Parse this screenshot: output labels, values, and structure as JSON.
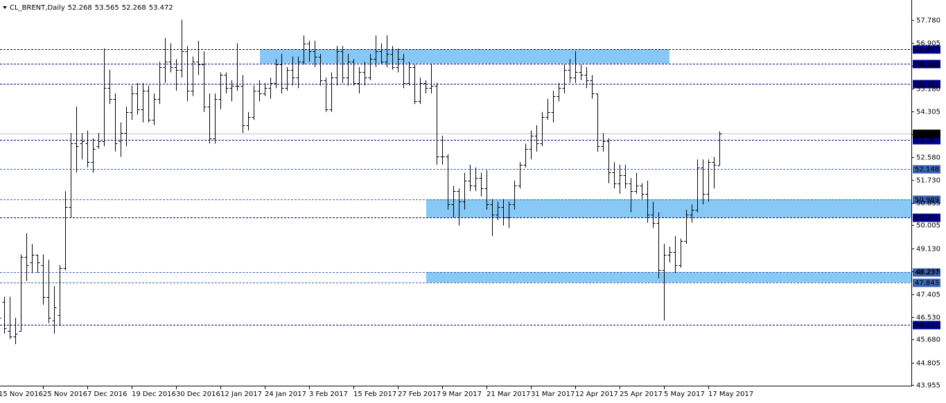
{
  "chart_data": {
    "type": "ohlc",
    "title": "CL_BRENT,Daily",
    "categories": [
      "15 Nov 2016",
      null,
      null,
      null,
      null,
      null,
      null,
      null,
      "25 Nov 2016",
      null,
      null,
      null,
      null,
      null,
      null,
      null,
      "7 Dec 2016",
      null,
      null,
      null,
      null,
      null,
      null,
      null,
      "19 Dec 2016",
      null,
      null,
      null,
      null,
      null,
      null,
      null,
      "30 Dec 2016",
      null,
      null,
      null,
      null,
      null,
      null,
      null,
      "12 Jan 2017",
      null,
      null,
      null,
      null,
      null,
      null,
      null,
      "24 Jan 2017",
      null,
      null,
      null,
      null,
      null,
      null,
      null,
      "3 Feb 2017",
      null,
      null,
      null,
      null,
      null,
      null,
      null,
      "15 Feb 2017",
      null,
      null,
      null,
      null,
      null,
      null,
      null,
      "27 Feb 2017",
      null,
      null,
      null,
      null,
      null,
      null,
      null,
      "9 Mar 2017",
      null,
      null,
      null,
      null,
      null,
      null,
      null,
      "21 Mar 2017",
      null,
      null,
      null,
      null,
      null,
      null,
      null,
      "31 Mar 2017",
      null,
      null,
      null,
      null,
      null,
      null,
      null,
      "12 Apr 2017",
      null,
      null,
      null,
      null,
      null,
      null,
      null,
      "25 Apr 2017",
      null,
      null,
      null,
      null,
      null,
      null,
      null,
      "5 May 2017",
      null,
      null,
      null,
      null,
      null,
      null,
      null,
      "17 May 2017",
      null,
      null
    ],
    "open": [
      46.8,
      47.1,
      46.0,
      45.8,
      46.0,
      48.8,
      48.6,
      48.9,
      48.5,
      47.3,
      46.4,
      46.6,
      48.4,
      50.7,
      53.1,
      53.1,
      53.1,
      52.4,
      53.0,
      53.2,
      55.2,
      54.8,
      53.2,
      53.5,
      54.3,
      55.0,
      54.4,
      55.1,
      54.0,
      54.8,
      56.0,
      56.2,
      56.0,
      55.9,
      56.6,
      55.1,
      56.2,
      56.1,
      54.5,
      53.3,
      54.8,
      55.7,
      55.2,
      55.3,
      55.3,
      53.8,
      54.1,
      55.1,
      55.0,
      55.2,
      55.4,
      56.1,
      55.2,
      55.9,
      55.6,
      56.2,
      56.9,
      56.6,
      56.4,
      55.5,
      54.4,
      55.6,
      56.6,
      55.6,
      56.2,
      55.4,
      55.8,
      55.6,
      56.3,
      56.6,
      56.2,
      56.5,
      56.0,
      56.3,
      55.4,
      56.0,
      54.7,
      55.4,
      55.2,
      55.3,
      52.6,
      52.6,
      50.8,
      51.3,
      50.9,
      51.7,
      51.5,
      51.8,
      51.4,
      50.8,
      50.4,
      50.7,
      50.3,
      50.8,
      51.5,
      52.3,
      52.9,
      53.4,
      53.1,
      54.1,
      54.3,
      54.9,
      55.2,
      55.9,
      55.6,
      55.8,
      55.7,
      55.5,
      55.0,
      53.0,
      53.2,
      52.0,
      51.6,
      51.9,
      51.6,
      51.3,
      51.5,
      51.2,
      50.4,
      50.1,
      48.3,
      48.9,
      49.0,
      48.5,
      49.4,
      50.4,
      50.6,
      52.2,
      51.2,
      52.4,
      52.268
    ],
    "high": [
      47.3,
      47.3,
      47.3,
      46.5,
      48.9,
      49.7,
      49.3,
      48.9,
      48.9,
      48.7,
      47.7,
      48.5,
      51.3,
      53.5,
      54.5,
      53.5,
      53.6,
      53.3,
      53.5,
      56.7,
      55.9,
      55.0,
      53.9,
      54.5,
      55.3,
      55.4,
      55.4,
      55.3,
      55.0,
      56.2,
      57.1,
      56.9,
      56.3,
      57.8,
      56.8,
      56.4,
      57.0,
      56.6,
      55.0,
      55.0,
      55.8,
      55.8,
      55.5,
      56.9,
      55.7,
      54.3,
      55.3,
      55.5,
      55.4,
      55.6,
      56.3,
      56.5,
      56.0,
      56.4,
      56.4,
      57.2,
      57.0,
      57.0,
      56.5,
      55.6,
      55.8,
      56.8,
      56.8,
      56.5,
      56.3,
      56.0,
      56.2,
      56.5,
      57.2,
      56.9,
      57.2,
      56.8,
      56.7,
      56.5,
      56.2,
      56.1,
      55.6,
      55.5,
      56.1,
      55.4,
      53.4,
      52.7,
      51.5,
      51.4,
      52.0,
      52.3,
      52.2,
      52.0,
      52.1,
      51.0,
      50.9,
      51.0,
      50.9,
      51.7,
      52.4,
      53.1,
      53.6,
      53.8,
      54.3,
      54.8,
      55.1,
      55.4,
      56.1,
      56.3,
      56.6,
      56.1,
      56.0,
      55.7,
      55.0,
      53.5,
      53.3,
      52.4,
      52.3,
      52.3,
      51.8,
      52.0,
      51.6,
      51.7,
      50.9,
      50.5,
      49.3,
      49.2,
      49.6,
      49.5,
      50.6,
      50.8,
      52.5,
      52.5,
      52.5,
      52.6,
      53.565
    ],
    "low": [
      46.2,
      45.9,
      45.7,
      45.5,
      46.0,
      47.9,
      48.2,
      48.2,
      47.0,
      46.3,
      45.9,
      46.2,
      48.3,
      50.3,
      52.0,
      52.5,
      52.2,
      52.0,
      52.9,
      53.0,
      54.6,
      52.8,
      52.6,
      53.0,
      54.0,
      54.2,
      53.9,
      53.9,
      53.8,
      54.6,
      55.4,
      55.8,
      55.1,
      55.6,
      54.7,
      54.9,
      55.7,
      54.3,
      53.1,
      53.1,
      54.4,
      55.0,
      54.7,
      55.1,
      53.5,
      53.6,
      54.0,
      54.7,
      54.9,
      54.8,
      55.2,
      55.0,
      55.1,
      55.3,
      55.2,
      56.1,
      56.2,
      56.0,
      55.3,
      54.3,
      54.3,
      55.3,
      55.4,
      55.3,
      55.3,
      55.0,
      55.3,
      55.5,
      56.0,
      56.1,
      56.0,
      55.9,
      55.8,
      55.2,
      55.3,
      54.6,
      54.6,
      55.0,
      55.0,
      52.3,
      52.3,
      50.6,
      50.3,
      50.0,
      50.6,
      51.3,
      51.3,
      51.1,
      50.6,
      49.6,
      50.2,
      50.0,
      49.9,
      50.6,
      51.4,
      52.2,
      52.5,
      52.8,
      53.0,
      54.0,
      53.9,
      54.7,
      55.0,
      55.4,
      55.4,
      55.5,
      55.2,
      54.8,
      52.8,
      52.8,
      51.6,
      51.4,
      51.2,
      51.4,
      50.5,
      51.2,
      51.0,
      50.1,
      49.9,
      48.0,
      46.4,
      48.6,
      48.2,
      48.4,
      49.3,
      50.1,
      50.5,
      50.8,
      50.9,
      51.4,
      52.268
    ],
    "close": [
      46.5,
      46.1,
      45.8,
      45.9,
      48.8,
      48.5,
      48.9,
      48.6,
      47.3,
      46.5,
      46.9,
      48.4,
      50.7,
      53.1,
      53.0,
      53.2,
      52.4,
      52.9,
      53.2,
      55.2,
      54.8,
      53.1,
      53.5,
      54.3,
      55.0,
      54.4,
      55.1,
      54.0,
      54.8,
      56.0,
      56.2,
      56.0,
      55.9,
      56.6,
      55.1,
      56.2,
      56.1,
      54.5,
      53.3,
      54.8,
      55.7,
      55.2,
      55.3,
      55.3,
      53.8,
      54.1,
      55.1,
      55.0,
      55.2,
      55.4,
      56.1,
      55.2,
      55.9,
      55.6,
      56.2,
      56.9,
      56.6,
      56.4,
      55.5,
      54.4,
      55.6,
      56.6,
      55.6,
      56.2,
      55.4,
      55.8,
      55.6,
      56.3,
      56.6,
      56.2,
      56.5,
      56.0,
      56.3,
      55.4,
      56.0,
      54.7,
      55.4,
      55.2,
      55.3,
      52.6,
      52.6,
      50.8,
      51.3,
      50.9,
      51.7,
      51.5,
      51.8,
      51.4,
      50.8,
      50.4,
      50.7,
      50.3,
      50.8,
      51.5,
      52.3,
      52.9,
      53.4,
      53.1,
      54.1,
      54.3,
      54.9,
      55.2,
      55.9,
      55.6,
      55.8,
      55.7,
      55.5,
      55.0,
      53.0,
      53.2,
      52.0,
      51.6,
      51.9,
      51.6,
      51.3,
      51.5,
      51.2,
      50.4,
      50.1,
      48.3,
      48.9,
      49.0,
      48.5,
      49.4,
      50.4,
      50.6,
      52.2,
      51.2,
      52.4,
      52.3,
      53.472
    ],
    "color": "#000000",
    "ylim": [
      43.93,
      58.54
    ],
    "yticks": [
      {
        "value": 57.78,
        "label": "57.780"
      },
      56.905,
      56.055,
      {
        "value": 55.18,
        "label": "55.180"
      },
      54.305,
      53.455,
      {
        "value": 52.58,
        "label": "52.580"
      },
      {
        "value": 51.73,
        "label": "51.730"
      },
      50.855,
      50.005,
      {
        "value": 49.13,
        "label": "49.130"
      },
      48.255,
      47.405,
      {
        "value": 46.53,
        "label": "46.530"
      },
      {
        "value": 45.68,
        "label": "45.680"
      },
      44.805,
      43.955
    ],
    "levels": {
      "values": [
        56.677,
        56.132,
        55.357,
        53.24,
        52.148,
        50.989,
        50.301,
        48.237,
        47.843,
        46.231
      ],
      "colors": [
        "#00008b",
        "#00008b",
        "#00008b",
        "#00008b",
        "#3a64b4",
        "#3a64b4",
        "#00008b",
        "#3a64b4",
        "#3a64b4",
        "#00008b"
      ]
    },
    "zones": [
      {
        "high": 56.677,
        "low": 56.132
      },
      {
        "high": 50.989,
        "low": 50.301
      },
      {
        "high": 48.237,
        "low": 47.843
      }
    ],
    "zone_color": "#87c8f5",
    "last_price": 53.472
  }
}
